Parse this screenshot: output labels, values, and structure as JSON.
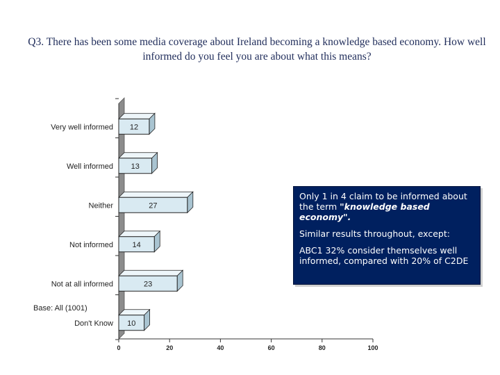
{
  "question": "Q3. There has been some media coverage about Ireland becoming a knowledge based economy.  How well informed do you feel you are about what this means?",
  "base_note": "Base: All (1001)",
  "callout": {
    "line1_pre": "Only 1 in 4 claim to be informed about the term ",
    "line1_em": "\"knowledge based economy\".",
    "line2": "Similar results throughout, except:",
    "line3": "ABC1 32% consider themselves well informed, compared with 20% of C2DE"
  },
  "colors": {
    "bar_fill": "#d9eaf2",
    "bar_stroke": "#222222",
    "back_wall": "#8c8c8c",
    "floor": "#cfcfcf",
    "callout_bg": "#00205f"
  },
  "chart_data": {
    "type": "bar",
    "orientation": "horizontal",
    "style": "3d",
    "categories": [
      "Very well informed",
      "Well informed",
      "Neither",
      "Not informed",
      "Not at all informed",
      "Don't Know"
    ],
    "values": [
      12,
      13,
      27,
      14,
      23,
      10
    ],
    "xlim": [
      0,
      100
    ],
    "xticks": [
      0,
      20,
      40,
      60,
      80,
      100
    ],
    "data_labels": true
  }
}
